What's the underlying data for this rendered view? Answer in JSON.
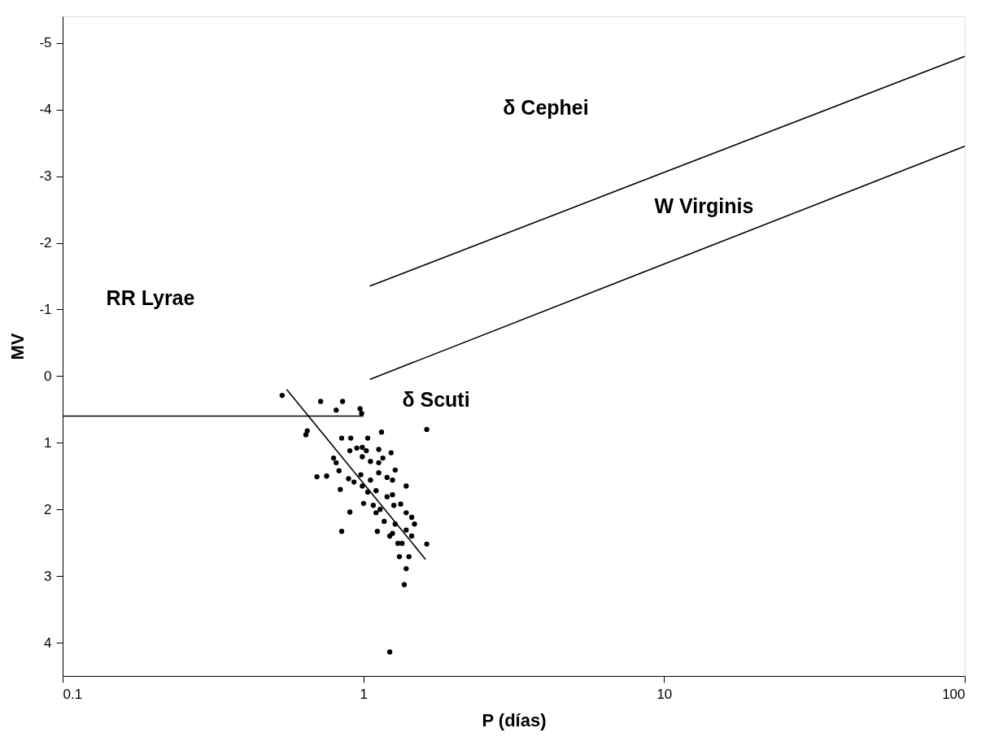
{
  "chart_data": {
    "type": "scatter",
    "xlabel": "P (días)",
    "ylabel": "MV",
    "log": "x",
    "xlim": [
      0.1,
      100
    ],
    "xticks": [
      0.1,
      1,
      10,
      100
    ],
    "ylim": [
      4.5,
      -5.4
    ],
    "yticks": [
      -5,
      -4,
      -3,
      -2,
      -1,
      0,
      1,
      2,
      3,
      4
    ],
    "grid": false,
    "series": [
      {
        "marker": "circle",
        "color": "#000000",
        "x": [
          0.537,
          0.721,
          0.853,
          0.812,
          0.975,
          0.987,
          0.651,
          0.644,
          1.149,
          1.625,
          0.847,
          0.908,
          1.034,
          0.902,
          0.951,
          0.992,
          1.023,
          1.125,
          1.237,
          0.992,
          1.056,
          1.125,
          0.796,
          0.812,
          1.161,
          1.276,
          0.701,
          0.755,
          0.83,
          0.893,
          0.981,
          1.056,
          1.125,
          1.199,
          1.25,
          0.931,
          0.992,
          0.838,
          1.388,
          1.034,
          1.199,
          1.25,
          1.102,
          1.002,
          0.902,
          1.079,
          1.137,
          1.263,
          1.331,
          1.102,
          1.388,
          1.448,
          1.479,
          1.173,
          1.276,
          0.847,
          1.113,
          1.25,
          1.388,
          1.448,
          1.224,
          1.303,
          1.345,
          1.625,
          1.318,
          1.418,
          1.388,
          1.368,
          1.224
        ],
        "values": [
          0.29,
          0.38,
          0.38,
          0.51,
          0.49,
          0.56,
          0.82,
          0.88,
          0.84,
          0.8,
          0.93,
          0.93,
          0.93,
          1.12,
          1.08,
          1.07,
          1.12,
          1.1,
          1.15,
          1.21,
          1.28,
          1.3,
          1.23,
          1.3,
          1.23,
          1.41,
          1.51,
          1.5,
          1.42,
          1.54,
          1.48,
          1.56,
          1.45,
          1.52,
          1.56,
          1.59,
          1.65,
          1.7,
          1.65,
          1.74,
          1.81,
          1.78,
          1.72,
          1.91,
          2.04,
          1.94,
          2.0,
          1.94,
          1.92,
          2.05,
          2.05,
          2.12,
          2.22,
          2.18,
          2.22,
          2.33,
          2.33,
          2.36,
          2.31,
          2.4,
          2.4,
          2.51,
          2.51,
          2.52,
          2.71,
          2.71,
          2.89,
          3.13,
          4.14
        ]
      },
      {
        "type": "line",
        "color": "#000000",
        "x": [
          1.05,
          100
        ],
        "values": [
          -1.35,
          -4.8
        ]
      },
      {
        "type": "line",
        "color": "#000000",
        "x": [
          1.05,
          100
        ],
        "values": [
          0.05,
          -3.45
        ]
      },
      {
        "type": "line",
        "color": "#000000",
        "x": [
          0.1,
          1.0
        ],
        "values": [
          0.6,
          0.6
        ]
      },
      {
        "type": "line",
        "color": "#000000",
        "x": [
          0.556,
          1.61
        ],
        "values": [
          0.2,
          2.75
        ]
      }
    ],
    "annotations": [
      "δ Cephei",
      "W Virginis",
      "RR Lyrae",
      "δ Scuti"
    ]
  }
}
